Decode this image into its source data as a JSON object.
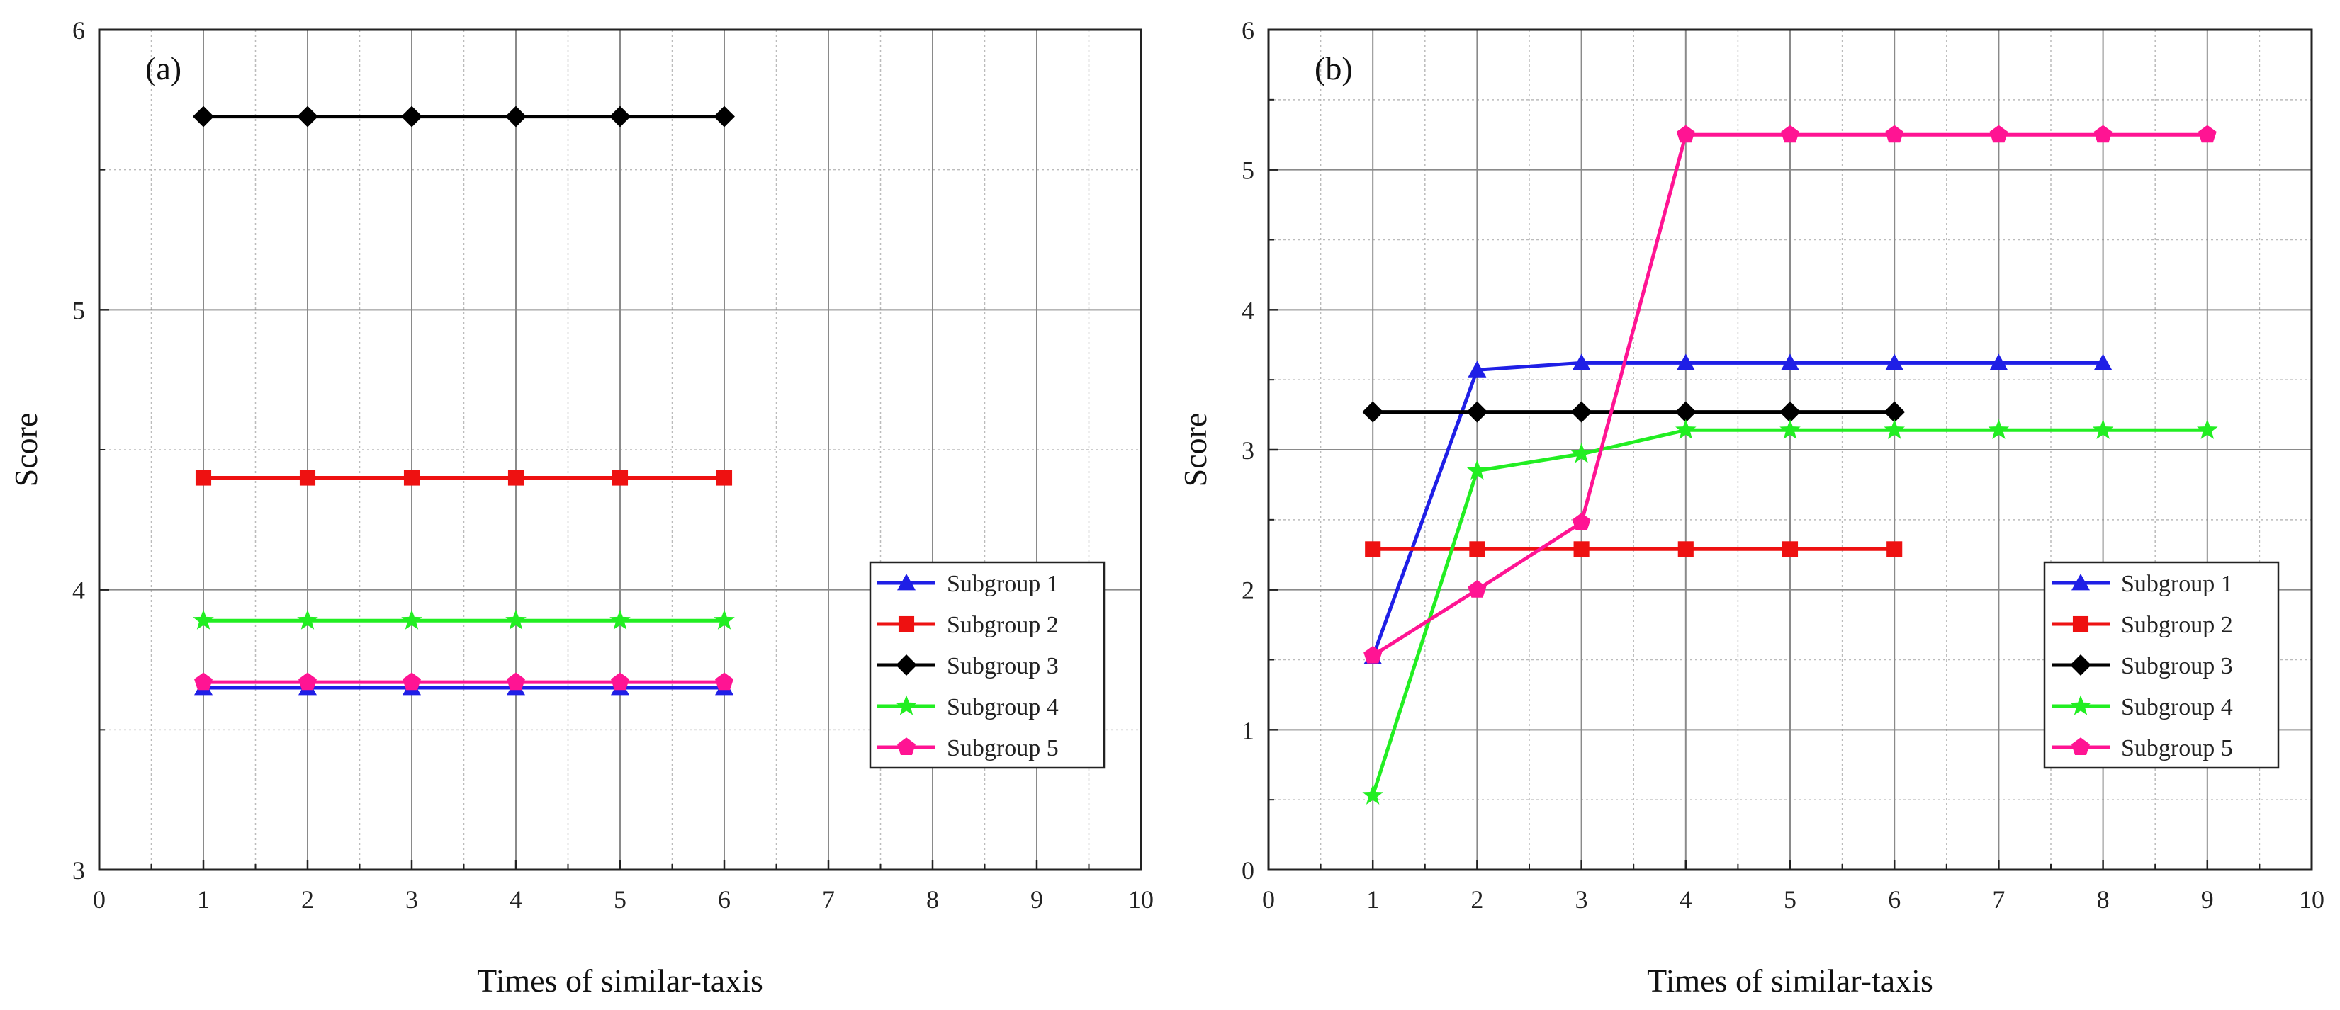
{
  "colors": {
    "subgroup_1": "#1f1fe6",
    "subgroup_2": "#ee1111",
    "subgroup_3": "#000000",
    "subgroup_4": "#22ee22",
    "subgroup_5": "#ff1493"
  },
  "chart_data": [
    {
      "type": "line",
      "panel_label": "(a)",
      "xlabel": "Times of similar-taxis",
      "ylabel": "Score",
      "xlim": [
        0,
        10
      ],
      "ylim": [
        3,
        6
      ],
      "xticks": [
        0,
        1,
        2,
        3,
        4,
        5,
        6,
        7,
        8,
        9,
        10
      ],
      "yticks": [
        3,
        4,
        5,
        6
      ],
      "grid": true,
      "legend_position": "lower-right",
      "series": [
        {
          "name": "Subgroup 1",
          "marker": "triangle",
          "x": [
            1,
            2,
            3,
            4,
            5,
            6
          ],
          "values": [
            3.65,
            3.65,
            3.65,
            3.65,
            3.65,
            3.65
          ]
        },
        {
          "name": "Subgroup 2",
          "marker": "square",
          "x": [
            1,
            2,
            3,
            4,
            5,
            6
          ],
          "values": [
            4.4,
            4.4,
            4.4,
            4.4,
            4.4,
            4.4
          ]
        },
        {
          "name": "Subgroup 3",
          "marker": "diamond",
          "x": [
            1,
            2,
            3,
            4,
            5,
            6
          ],
          "values": [
            5.69,
            5.69,
            5.69,
            5.69,
            5.69,
            5.69
          ]
        },
        {
          "name": "Subgroup 4",
          "marker": "star",
          "x": [
            1,
            2,
            3,
            4,
            5,
            6
          ],
          "values": [
            3.89,
            3.89,
            3.89,
            3.89,
            3.89,
            3.89
          ]
        },
        {
          "name": "Subgroup 5",
          "marker": "pentagon",
          "x": [
            1,
            2,
            3,
            4,
            5,
            6
          ],
          "values": [
            3.67,
            3.67,
            3.67,
            3.67,
            3.67,
            3.67
          ]
        }
      ]
    },
    {
      "type": "line",
      "panel_label": "(b)",
      "xlabel": "Times of similar-taxis",
      "ylabel": "Score",
      "xlim": [
        0,
        10
      ],
      "ylim": [
        0,
        6
      ],
      "xticks": [
        0,
        1,
        2,
        3,
        4,
        5,
        6,
        7,
        8,
        9,
        10
      ],
      "yticks": [
        0,
        1,
        2,
        3,
        4,
        5,
        6
      ],
      "grid": true,
      "legend_position": "lower-right",
      "series": [
        {
          "name": "Subgroup 1",
          "marker": "triangle",
          "x": [
            1,
            2,
            3,
            4,
            5,
            6,
            7,
            8
          ],
          "values": [
            1.52,
            3.57,
            3.62,
            3.62,
            3.62,
            3.62,
            3.62,
            3.62
          ]
        },
        {
          "name": "Subgroup 2",
          "marker": "square",
          "x": [
            1,
            2,
            3,
            4,
            5,
            6
          ],
          "values": [
            2.29,
            2.29,
            2.29,
            2.29,
            2.29,
            2.29
          ]
        },
        {
          "name": "Subgroup 3",
          "marker": "diamond",
          "x": [
            1,
            2,
            3,
            4,
            5,
            6
          ],
          "values": [
            3.27,
            3.27,
            3.27,
            3.27,
            3.27,
            3.27
          ]
        },
        {
          "name": "Subgroup 4",
          "marker": "star",
          "x": [
            1,
            2,
            3,
            4,
            5,
            6,
            7,
            8,
            9
          ],
          "values": [
            0.53,
            2.85,
            2.97,
            3.14,
            3.14,
            3.14,
            3.14,
            3.14,
            3.14
          ]
        },
        {
          "name": "Subgroup 5",
          "marker": "pentagon",
          "x": [
            1,
            2,
            3,
            4,
            5,
            6,
            7,
            8,
            9
          ],
          "values": [
            1.53,
            2.0,
            2.48,
            5.25,
            5.25,
            5.25,
            5.25,
            5.25,
            5.25
          ]
        }
      ]
    }
  ]
}
